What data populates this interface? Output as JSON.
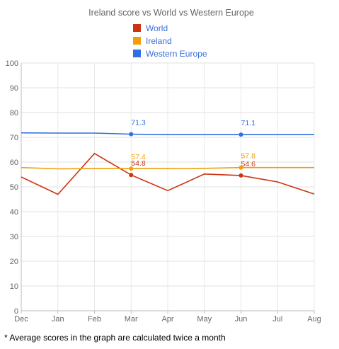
{
  "chart_data": {
    "type": "line",
    "title": "Ireland score vs World vs Western Europe",
    "xlabel": "",
    "ylabel": "",
    "categories": [
      "Dec",
      "Jan",
      "Feb",
      "Mar",
      "Apr",
      "May",
      "Jun",
      "Jul",
      "Aug"
    ],
    "x": [
      0,
      0.5,
      1,
      1.5,
      2,
      2.5,
      3,
      3.5,
      4,
      4.5,
      5,
      5.5,
      6,
      6.5,
      7,
      7.5,
      8
    ],
    "ylim": [
      0,
      100
    ],
    "yticks": [
      0,
      10,
      20,
      30,
      40,
      50,
      60,
      70,
      80,
      90,
      100
    ],
    "grid": true,
    "legend_position": "top",
    "series": [
      {
        "name": "World",
        "color": "#cc3311",
        "points": [
          [
            0,
            54
          ],
          [
            1,
            47
          ],
          [
            2,
            63.5
          ],
          [
            3,
            54.8
          ],
          [
            4,
            48.5
          ],
          [
            5,
            55.2
          ],
          [
            6,
            54.6
          ],
          [
            7,
            52
          ],
          [
            8,
            47.1
          ]
        ],
        "labels": [
          {
            "x": 3,
            "text": "54.8"
          },
          {
            "x": 6,
            "text": "54.6"
          }
        ]
      },
      {
        "name": "Ireland",
        "color": "#f29d0a",
        "points": [
          [
            0,
            57.8
          ],
          [
            1,
            57.3
          ],
          [
            2,
            57.4
          ],
          [
            3,
            57.4
          ],
          [
            4,
            57.4
          ],
          [
            5,
            57.5
          ],
          [
            6,
            57.8
          ],
          [
            7,
            57.8
          ],
          [
            8,
            57.8
          ]
        ],
        "labels": [
          {
            "x": 3,
            "text": "57.4"
          },
          {
            "x": 6,
            "text": "57.8"
          }
        ]
      },
      {
        "name": "Western Europe",
        "color": "#2f6fe0",
        "points": [
          [
            0,
            71.8
          ],
          [
            1,
            71.7
          ],
          [
            2,
            71.7
          ],
          [
            3,
            71.3
          ],
          [
            4,
            71.1
          ],
          [
            5,
            71.1
          ],
          [
            6,
            71.1
          ],
          [
            7,
            71.1
          ],
          [
            8,
            71.1
          ]
        ],
        "labels": [
          {
            "x": 3,
            "text": "71.3"
          },
          {
            "x": 6,
            "text": "71.1"
          }
        ]
      }
    ]
  },
  "footnote": "* Average scores in the graph are calculated twice a month"
}
